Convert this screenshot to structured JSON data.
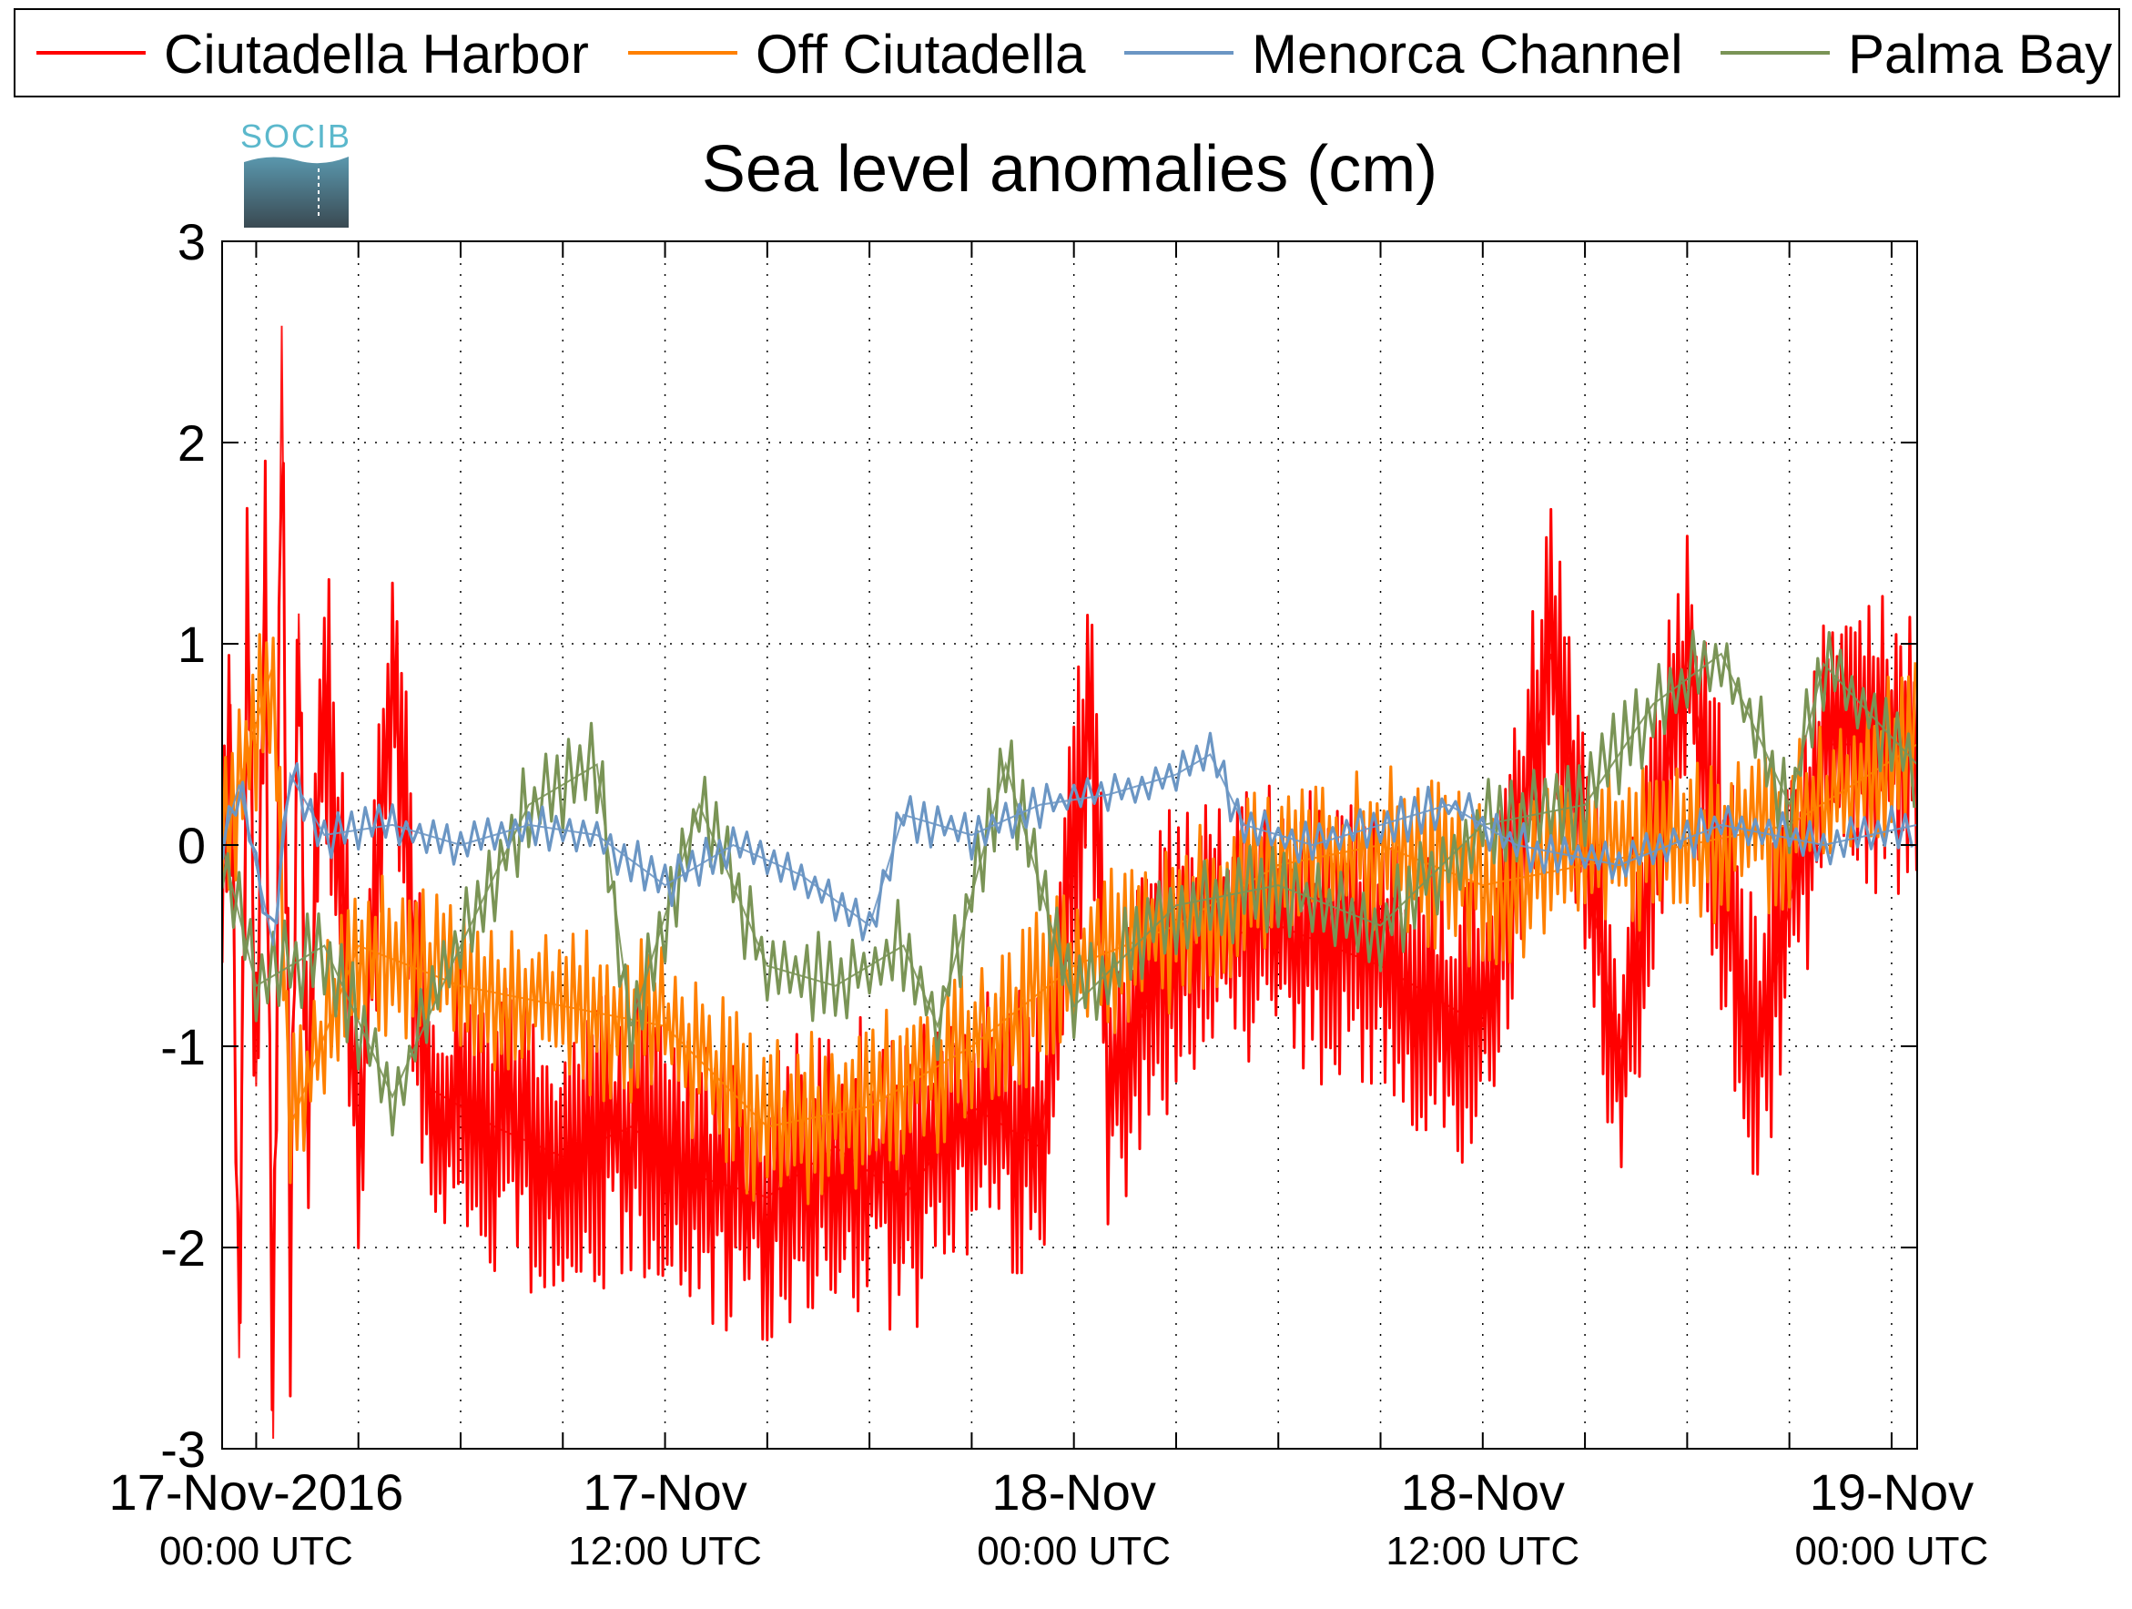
{
  "chart_data": {
    "type": "line",
    "title": "Sea level anomalies (cm)",
    "xlabel": "",
    "ylabel": "",
    "ylim": [
      -3,
      3
    ],
    "yticks": [
      -3,
      -2,
      -1,
      0,
      1,
      2,
      3
    ],
    "xlim": [
      "2016-11-16T23:00",
      "2016-11-19T00:45"
    ],
    "x_major_ticks": [
      {
        "t": "2016-11-17T00:00",
        "line1": "17-Nov-2016",
        "line2": "00:00 UTC"
      },
      {
        "t": "2016-11-17T12:00",
        "line1": "17-Nov",
        "line2": "12:00 UTC"
      },
      {
        "t": "2016-11-18T00:00",
        "line1": "18-Nov",
        "line2": "00:00 UTC"
      },
      {
        "t": "2016-11-18T12:00",
        "line1": "18-Nov",
        "line2": "12:00 UTC"
      },
      {
        "t": "2016-11-19T00:00",
        "line1": "19-Nov",
        "line2": "00:00 UTC"
      }
    ],
    "x_minor_tick_hours": 3,
    "grid": true,
    "legend_position": "top",
    "logo_text": "SOCIB",
    "series": [
      {
        "name": "Ciutadella Harbor",
        "color": "#ff0000",
        "points": [
          [
            "2016-11-16T23:00",
            0.0
          ],
          [
            "2016-11-16T23:15",
            0.7
          ],
          [
            "2016-11-16T23:30",
            -2.55
          ],
          [
            "2016-11-16T23:45",
            1.3
          ],
          [
            "2016-11-17T00:00",
            -1.2
          ],
          [
            "2016-11-17T00:15",
            1.5
          ],
          [
            "2016-11-17T00:30",
            -2.95
          ],
          [
            "2016-11-17T00:45",
            2.58
          ],
          [
            "2016-11-17T01:00",
            -2.3
          ],
          [
            "2016-11-17T01:15",
            1.15
          ],
          [
            "2016-11-17T01:30",
            -1.4
          ],
          [
            "2016-11-17T02:00",
            0.9
          ],
          [
            "2016-11-17T03:00",
            -1.5
          ],
          [
            "2016-11-17T04:00",
            0.85
          ],
          [
            "2016-11-17T05:00",
            -1.2
          ],
          [
            "2016-11-17T07:00",
            -1.4
          ],
          [
            "2016-11-17T09:00",
            -1.55
          ],
          [
            "2016-11-17T11:00",
            -1.4
          ],
          [
            "2016-11-17T13:00",
            -1.65
          ],
          [
            "2016-11-17T15:00",
            -1.75
          ],
          [
            "2016-11-17T17:00",
            -1.5
          ],
          [
            "2016-11-17T19:00",
            -1.75
          ],
          [
            "2016-11-17T21:00",
            -1.3
          ],
          [
            "2016-11-17T23:00",
            -1.5
          ],
          [
            "2016-11-18T00:30",
            0.7
          ],
          [
            "2016-11-18T01:00",
            -1.2
          ],
          [
            "2016-11-18T03:00",
            -0.5
          ],
          [
            "2016-11-18T06:00",
            -0.4
          ],
          [
            "2016-11-18T09:00",
            -0.6
          ],
          [
            "2016-11-18T12:00",
            -0.9
          ],
          [
            "2016-11-18T14:00",
            0.95
          ],
          [
            "2016-11-18T16:00",
            -1.05
          ],
          [
            "2016-11-18T18:00",
            0.95
          ],
          [
            "2016-11-18T20:00",
            -1.1
          ],
          [
            "2016-11-18T22:00",
            0.5
          ],
          [
            "2016-11-19T00:45",
            0.5
          ]
        ]
      },
      {
        "name": "Off Ciutadella",
        "color": "#ff8000",
        "points": [
          [
            "2016-11-16T23:00",
            0.0
          ],
          [
            "2016-11-17T00:30",
            0.9
          ],
          [
            "2016-11-17T01:00",
            -1.4
          ],
          [
            "2016-11-17T03:00",
            -0.5
          ],
          [
            "2016-11-17T06:00",
            -0.7
          ],
          [
            "2016-11-17T09:00",
            -0.8
          ],
          [
            "2016-11-17T12:00",
            -0.9
          ],
          [
            "2016-11-17T15:00",
            -1.4
          ],
          [
            "2016-11-17T18:00",
            -1.3
          ],
          [
            "2016-11-17T21:00",
            -1.0
          ],
          [
            "2016-11-18T00:00",
            -0.6
          ],
          [
            "2016-11-18T03:00",
            -0.4
          ],
          [
            "2016-11-18T06:00",
            -0.1
          ],
          [
            "2016-11-18T09:00",
            0.0
          ],
          [
            "2016-11-18T12:00",
            -0.2
          ],
          [
            "2016-11-18T15:00",
            -0.1
          ],
          [
            "2016-11-18T18:00",
            0.0
          ],
          [
            "2016-11-18T21:00",
            0.1
          ],
          [
            "2016-11-19T00:45",
            0.5
          ]
        ]
      },
      {
        "name": "Menorca Channel",
        "color": "#6b96c4",
        "points": [
          [
            "2016-11-16T23:00",
            0.0
          ],
          [
            "2016-11-16T23:30",
            0.3
          ],
          [
            "2016-11-17T00:30",
            -0.5
          ],
          [
            "2016-11-17T01:00",
            0.35
          ],
          [
            "2016-11-17T02:00",
            0.05
          ],
          [
            "2016-11-17T04:00",
            0.1
          ],
          [
            "2016-11-17T06:00",
            0.0
          ],
          [
            "2016-11-17T08:00",
            0.1
          ],
          [
            "2016-11-17T10:00",
            0.05
          ],
          [
            "2016-11-17T12:00",
            -0.2
          ],
          [
            "2016-11-17T14:00",
            0.0
          ],
          [
            "2016-11-17T16:00",
            -0.15
          ],
          [
            "2016-11-17T18:00",
            -0.4
          ],
          [
            "2016-11-17T19:00",
            0.15
          ],
          [
            "2016-11-17T21:00",
            0.05
          ],
          [
            "2016-11-17T23:00",
            0.2
          ],
          [
            "2016-11-18T01:00",
            0.25
          ],
          [
            "2016-11-18T03:00",
            0.35
          ],
          [
            "2016-11-18T04:00",
            0.45
          ],
          [
            "2016-11-18T05:00",
            0.1
          ],
          [
            "2016-11-18T07:00",
            0.0
          ],
          [
            "2016-11-18T09:00",
            0.1
          ],
          [
            "2016-11-18T11:00",
            0.2
          ],
          [
            "2016-11-18T13:00",
            0.0
          ],
          [
            "2016-11-18T16:00",
            -0.1
          ],
          [
            "2016-11-18T19:00",
            0.1
          ],
          [
            "2016-11-18T22:00",
            0.0
          ],
          [
            "2016-11-19T00:45",
            0.1
          ]
        ]
      },
      {
        "name": "Palma Bay",
        "color": "#7a9456",
        "points": [
          [
            "2016-11-16T23:00",
            0.0
          ],
          [
            "2016-11-17T00:00",
            -0.7
          ],
          [
            "2016-11-17T02:00",
            -0.5
          ],
          [
            "2016-11-17T04:00",
            -1.25
          ],
          [
            "2016-11-17T06:00",
            -0.5
          ],
          [
            "2016-11-17T08:00",
            0.2
          ],
          [
            "2016-11-17T10:00",
            0.4
          ],
          [
            "2016-11-17T11:00",
            -0.9
          ],
          [
            "2016-11-17T13:00",
            0.2
          ],
          [
            "2016-11-17T15:00",
            -0.6
          ],
          [
            "2016-11-17T17:00",
            -0.7
          ],
          [
            "2016-11-17T19:00",
            -0.5
          ],
          [
            "2016-11-17T20:00",
            -0.9
          ],
          [
            "2016-11-17T22:00",
            0.4
          ],
          [
            "2016-11-18T00:00",
            -0.8
          ],
          [
            "2016-11-18T03:00",
            -0.3
          ],
          [
            "2016-11-18T06:00",
            -0.2
          ],
          [
            "2016-11-18T09:00",
            -0.4
          ],
          [
            "2016-11-18T12:00",
            0.1
          ],
          [
            "2016-11-18T15:00",
            0.2
          ],
          [
            "2016-11-18T17:00",
            0.7
          ],
          [
            "2016-11-18T19:00",
            0.95
          ],
          [
            "2016-11-18T21:00",
            0.2
          ],
          [
            "2016-11-18T22:00",
            0.9
          ],
          [
            "2016-11-19T00:45",
            0.4
          ]
        ]
      }
    ]
  }
}
